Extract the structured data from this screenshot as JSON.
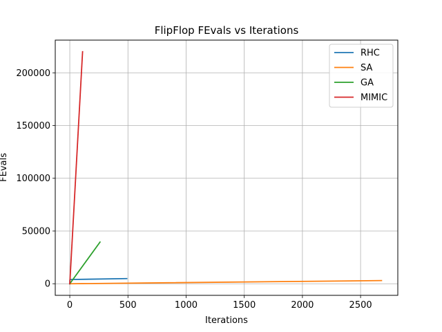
{
  "chart_data": {
    "type": "line",
    "title": "FlipFlop FEvals vs Iterations",
    "xlabel": "Iterations",
    "ylabel": "FEvals",
    "xlim": [
      -125,
      2820
    ],
    "ylim": [
      -11000,
      231000
    ],
    "xticks": [
      0,
      500,
      1000,
      1500,
      2000,
      2500
    ],
    "yticks": [
      0,
      50000,
      100000,
      150000,
      200000
    ],
    "grid": true,
    "legend_position": "top-right",
    "series": [
      {
        "name": "RHC",
        "color": "#1f77b4",
        "x": [
          0,
          1,
          490
        ],
        "y": [
          0,
          4000,
          4900
        ]
      },
      {
        "name": "SA",
        "color": "#ff7f0e",
        "x": [
          0,
          2680
        ],
        "y": [
          0,
          3000
        ]
      },
      {
        "name": "GA",
        "color": "#2ca02c",
        "x": [
          0,
          260
        ],
        "y": [
          0,
          39500
        ]
      },
      {
        "name": "MIMIC",
        "color": "#d62728",
        "x": [
          0,
          110
        ],
        "y": [
          0,
          220000
        ]
      }
    ]
  }
}
